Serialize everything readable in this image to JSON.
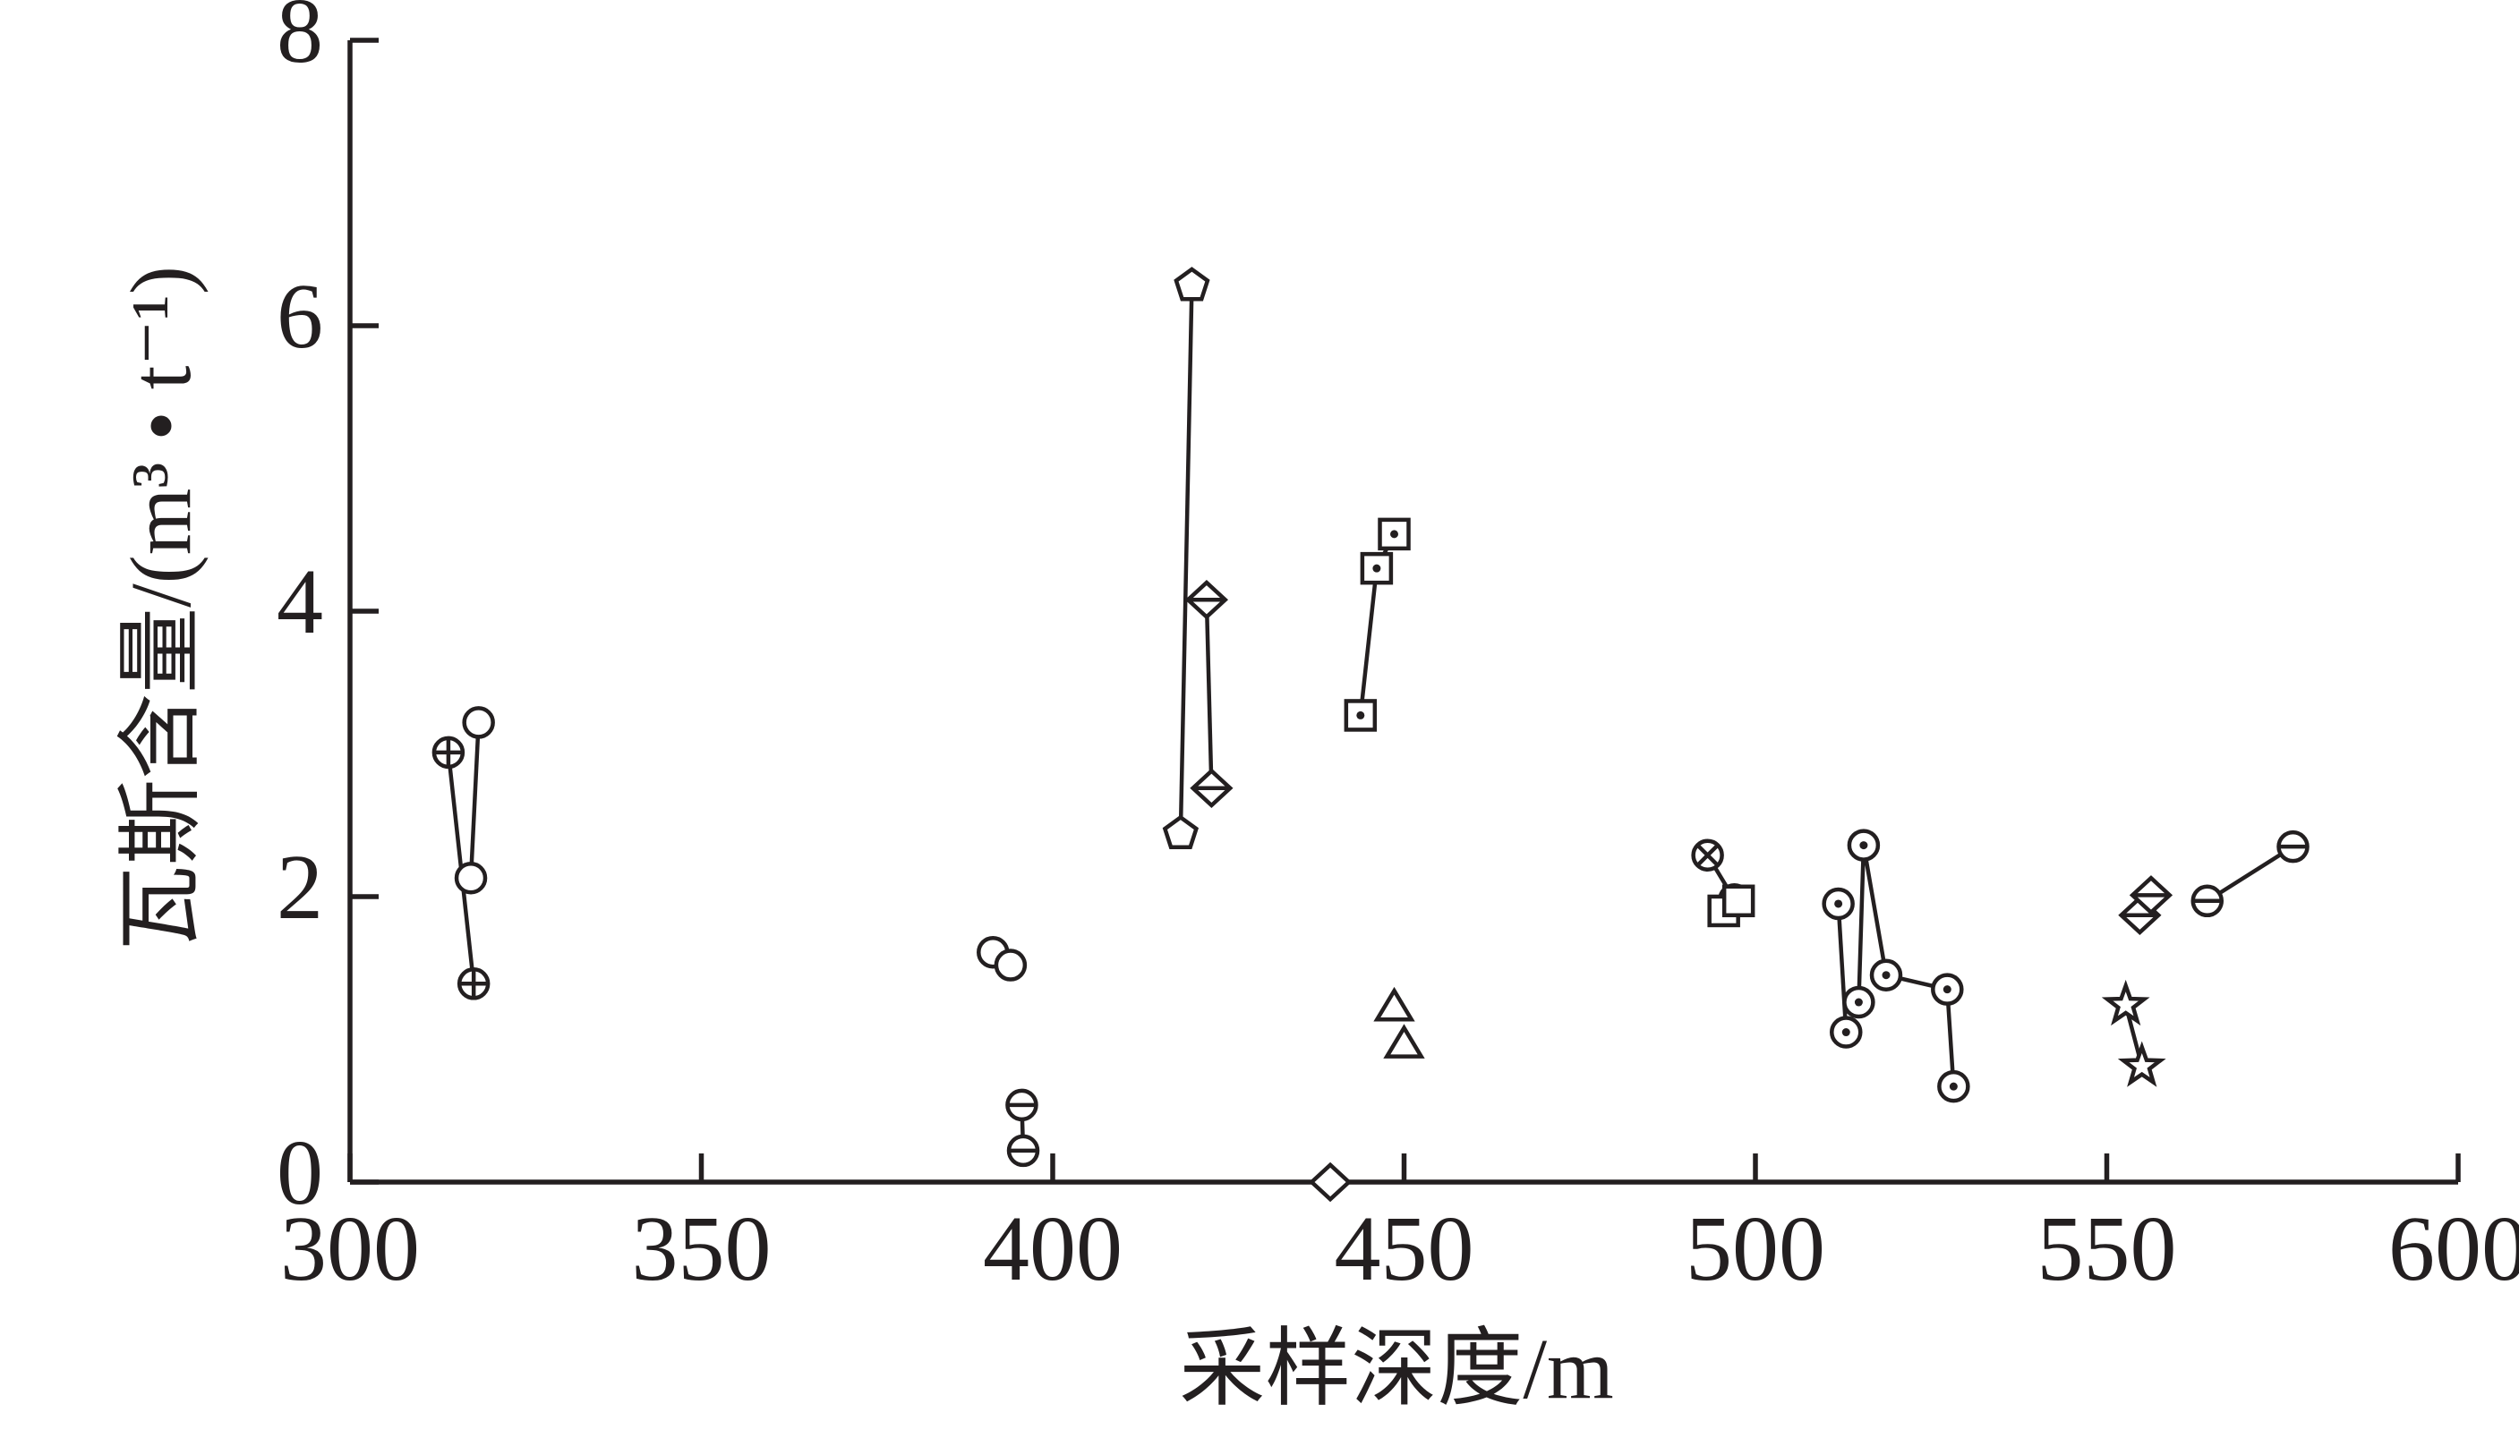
{
  "chart_data": {
    "type": "scatter",
    "xlabel": "采样深度/m",
    "ylabel": "瓦斯含量/(m³ • t⁻¹)",
    "xlim": [
      300,
      600
    ],
    "xticks": [
      300,
      350,
      400,
      450,
      500,
      550,
      600
    ],
    "ylim": [
      0,
      8
    ],
    "yticks": [
      0,
      2,
      4,
      6,
      8
    ],
    "color": "#231f20",
    "series": [
      {
        "marker": "circle-plus",
        "line": true,
        "x": [
          314,
          317.6
        ],
        "values": [
          3.01,
          1.39
        ]
      },
      {
        "marker": "circle",
        "line": true,
        "x": [
          318.3,
          317.2
        ],
        "values": [
          3.22,
          2.13
        ]
      },
      {
        "marker": "circle",
        "line": false,
        "x": [
          391.5,
          394
        ],
        "values": [
          1.61,
          1.52
        ]
      },
      {
        "marker": "circle-minus",
        "line": true,
        "x": [
          395.6,
          395.8
        ],
        "values": [
          0.54,
          0.22
        ]
      },
      {
        "marker": "pentagon",
        "line": true,
        "x": [
          419.8,
          418.2
        ],
        "values": [
          6.28,
          2.44
        ]
      },
      {
        "marker": "diamond-minus",
        "line": true,
        "x": [
          421.9,
          422.6
        ],
        "values": [
          4.08,
          2.76
        ]
      },
      {
        "marker": "diamond",
        "line": false,
        "x": [
          439.5
        ],
        "values": [
          0
        ]
      },
      {
        "marker": "square-dot",
        "line": true,
        "x": [
          443.8,
          446.1,
          448.6
        ],
        "values": [
          3.27,
          4.3,
          4.54
        ]
      },
      {
        "marker": "triangle",
        "line": false,
        "x": [
          448.6,
          450
        ],
        "values": [
          1.23,
          0.97
        ]
      },
      {
        "marker": "circle-x",
        "line": true,
        "x": [
          493.2,
          497
        ],
        "values": [
          2.29,
          1.98
        ]
      },
      {
        "marker": "square",
        "line": true,
        "x": [
          495.5,
          497.6
        ],
        "values": [
          1.9,
          1.97
        ]
      },
      {
        "marker": "circle-dot",
        "line": true,
        "x": [
          511.8,
          512.9
        ],
        "values": [
          1.95,
          1.05
        ]
      },
      {
        "marker": "circle-dot",
        "line": true,
        "x": [
          514.7,
          515.4,
          518.6,
          527.3,
          528.2
        ],
        "values": [
          1.26,
          2.36,
          1.45,
          1.35,
          0.67
        ]
      },
      {
        "marker": "star",
        "line": true,
        "x": [
          552.7,
          555
        ],
        "values": [
          1.24,
          0.81
        ]
      },
      {
        "marker": "diamond-minus",
        "line": true,
        "x": [
          554.7,
          556.3
        ],
        "values": [
          1.87,
          2.01
        ]
      },
      {
        "marker": "circle-minus",
        "line": true,
        "x": [
          564.3,
          576.5
        ],
        "values": [
          1.97,
          2.35
        ]
      }
    ]
  }
}
